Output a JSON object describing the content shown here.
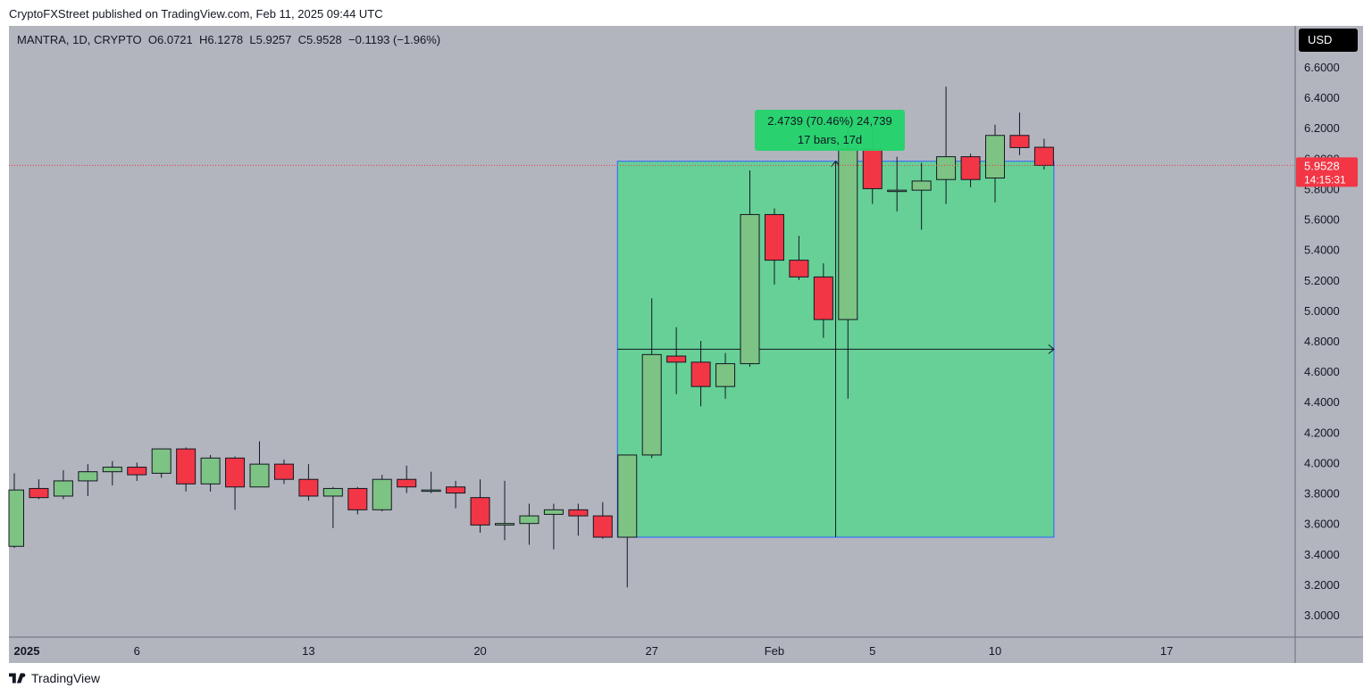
{
  "header": {
    "publisher": "CryptoFXStreet published on TradingView.com, Feb 11, 2025 09:44 UTC"
  },
  "legend": {
    "symbol": "MANTRA, 1D, CRYPTO",
    "open": "O6.0721",
    "high": "H6.1278",
    "low": "L5.9257",
    "close": "C5.9528",
    "change": "−0.1193 (−1.96%)"
  },
  "currency_button": "USD",
  "price_tag": {
    "price": "5.9528",
    "countdown": "14:15:31"
  },
  "measure": {
    "line1": "2.4739 (70.46%) 24,739",
    "line2": "17 bars, 17d"
  },
  "footer": {
    "brand": "TradingView"
  },
  "colors": {
    "up": "#7dc383",
    "down": "#f23645",
    "measure_fill": "#4cd98a",
    "measure_label": "#22d46a",
    "price_tag": "#f23645",
    "chart_bg": "#b2b5be"
  },
  "chart_data": {
    "type": "candlestick",
    "ylim": [
      2.9,
      6.75
    ],
    "y_ticks": [
      "6.6000",
      "6.4000",
      "6.2000",
      "6.0000",
      "5.8000",
      "5.6000",
      "5.4000",
      "5.2000",
      "5.0000",
      "4.8000",
      "4.6000",
      "4.4000",
      "4.2000",
      "4.0000",
      "3.8000",
      "3.6000",
      "3.4000",
      "3.2000",
      "3.0000"
    ],
    "x_ticks": [
      {
        "label": "2025",
        "day": 0,
        "bold": true
      },
      {
        "label": "6",
        "day": 5
      },
      {
        "label": "13",
        "day": 12
      },
      {
        "label": "20",
        "day": 19
      },
      {
        "label": "27",
        "day": 26
      },
      {
        "label": "Feb",
        "day": 31
      },
      {
        "label": "5",
        "day": 35
      },
      {
        "label": "10",
        "day": 40
      },
      {
        "label": "17",
        "day": 47
      }
    ],
    "candles": [
      {
        "day": 0,
        "o": 3.45,
        "h": 3.93,
        "l": 3.44,
        "c": 3.82
      },
      {
        "day": 1,
        "o": 3.83,
        "h": 3.89,
        "l": 3.76,
        "c": 3.77
      },
      {
        "day": 2,
        "o": 3.78,
        "h": 3.95,
        "l": 3.76,
        "c": 3.88
      },
      {
        "day": 3,
        "o": 3.88,
        "h": 3.99,
        "l": 3.78,
        "c": 3.94
      },
      {
        "day": 4,
        "o": 3.94,
        "h": 4.01,
        "l": 3.85,
        "c": 3.97
      },
      {
        "day": 5,
        "o": 3.97,
        "h": 4.0,
        "l": 3.88,
        "c": 3.92
      },
      {
        "day": 6,
        "o": 3.93,
        "h": 4.09,
        "l": 3.9,
        "c": 4.09
      },
      {
        "day": 7,
        "o": 4.09,
        "h": 4.1,
        "l": 3.81,
        "c": 3.86
      },
      {
        "day": 8,
        "o": 3.86,
        "h": 4.05,
        "l": 3.81,
        "c": 4.03
      },
      {
        "day": 9,
        "o": 4.03,
        "h": 4.04,
        "l": 3.69,
        "c": 3.84
      },
      {
        "day": 10,
        "o": 3.84,
        "h": 4.14,
        "l": 3.84,
        "c": 3.99
      },
      {
        "day": 11,
        "o": 3.99,
        "h": 4.02,
        "l": 3.86,
        "c": 3.89
      },
      {
        "day": 12,
        "o": 3.89,
        "h": 3.99,
        "l": 3.75,
        "c": 3.78
      },
      {
        "day": 13,
        "o": 3.78,
        "h": 3.84,
        "l": 3.57,
        "c": 3.83
      },
      {
        "day": 14,
        "o": 3.83,
        "h": 3.84,
        "l": 3.66,
        "c": 3.69
      },
      {
        "day": 15,
        "o": 3.69,
        "h": 3.92,
        "l": 3.68,
        "c": 3.89
      },
      {
        "day": 16,
        "o": 3.89,
        "h": 3.98,
        "l": 3.8,
        "c": 3.84
      },
      {
        "day": 17,
        "o": 3.82,
        "h": 3.94,
        "l": 3.8,
        "c": 3.82
      },
      {
        "day": 18,
        "o": 3.84,
        "h": 3.88,
        "l": 3.7,
        "c": 3.8
      },
      {
        "day": 19,
        "o": 3.77,
        "h": 3.89,
        "l": 3.54,
        "c": 3.59
      },
      {
        "day": 20,
        "o": 3.59,
        "h": 3.88,
        "l": 3.49,
        "c": 3.6
      },
      {
        "day": 21,
        "o": 3.6,
        "h": 3.73,
        "l": 3.46,
        "c": 3.65
      },
      {
        "day": 22,
        "o": 3.66,
        "h": 3.73,
        "l": 3.43,
        "c": 3.69
      },
      {
        "day": 23,
        "o": 3.69,
        "h": 3.73,
        "l": 3.52,
        "c": 3.65
      },
      {
        "day": 24,
        "o": 3.65,
        "h": 3.74,
        "l": 3.5,
        "c": 3.51
      },
      {
        "day": 25,
        "o": 3.51,
        "h": 4.05,
        "l": 3.18,
        "c": 4.05
      },
      {
        "day": 26,
        "o": 4.05,
        "h": 5.08,
        "l": 4.03,
        "c": 4.71
      },
      {
        "day": 27,
        "o": 4.7,
        "h": 4.89,
        "l": 4.45,
        "c": 4.66
      },
      {
        "day": 28,
        "o": 4.66,
        "h": 4.8,
        "l": 4.37,
        "c": 4.5
      },
      {
        "day": 29,
        "o": 4.5,
        "h": 4.72,
        "l": 4.42,
        "c": 4.65
      },
      {
        "day": 30,
        "o": 4.65,
        "h": 5.92,
        "l": 4.63,
        "c": 5.63
      },
      {
        "day": 31,
        "o": 5.63,
        "h": 5.67,
        "l": 5.17,
        "c": 5.33
      },
      {
        "day": 32,
        "o": 5.33,
        "h": 5.49,
        "l": 5.2,
        "c": 5.22
      },
      {
        "day": 33,
        "o": 5.22,
        "h": 5.31,
        "l": 4.82,
        "c": 4.94
      },
      {
        "day": 34,
        "o": 4.94,
        "h": 6.27,
        "l": 4.42,
        "c": 6.06
      },
      {
        "day": 35,
        "o": 6.06,
        "h": 6.21,
        "l": 5.7,
        "c": 5.8
      },
      {
        "day": 36,
        "o": 5.79,
        "h": 6.01,
        "l": 5.65,
        "c": 5.79
      },
      {
        "day": 37,
        "o": 5.79,
        "h": 5.97,
        "l": 5.53,
        "c": 5.85
      },
      {
        "day": 38,
        "o": 5.86,
        "h": 6.47,
        "l": 5.7,
        "c": 6.01
      },
      {
        "day": 39,
        "o": 6.01,
        "h": 6.03,
        "l": 5.81,
        "c": 5.86
      },
      {
        "day": 40,
        "o": 5.87,
        "h": 6.22,
        "l": 5.71,
        "c": 6.15
      },
      {
        "day": 41,
        "o": 6.15,
        "h": 6.3,
        "l": 6.02,
        "c": 6.07
      },
      {
        "day": 42,
        "o": 6.0721,
        "h": 6.1278,
        "l": 5.9257,
        "c": 5.9528
      }
    ],
    "measure_box": {
      "start_day": 25,
      "end_day": 42,
      "low": 3.51,
      "high": 5.98,
      "mid": 4.745,
      "bars": 17,
      "change": 2.4739,
      "change_pct": 70.46
    },
    "last_price": 5.9528
  }
}
